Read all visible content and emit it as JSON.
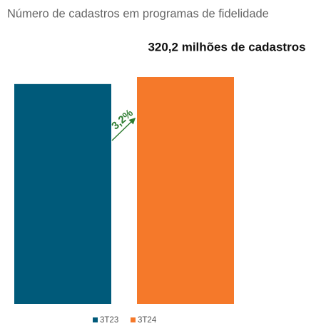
{
  "chart_data": {
    "type": "bar",
    "title": "Número de cadastros em programas de fidelidade",
    "categories": [
      "3T23",
      "3T24"
    ],
    "values": [
      310.3,
      320.2
    ],
    "colors": [
      "#005a7a",
      "#f5792a"
    ],
    "ylim": [
      0,
      320.2
    ],
    "annotations": [
      {
        "text": "320,2 milhões de cadastros"
      },
      {
        "text": "3,2%",
        "color": "#2e7d32"
      }
    ],
    "legend": "bottom"
  }
}
